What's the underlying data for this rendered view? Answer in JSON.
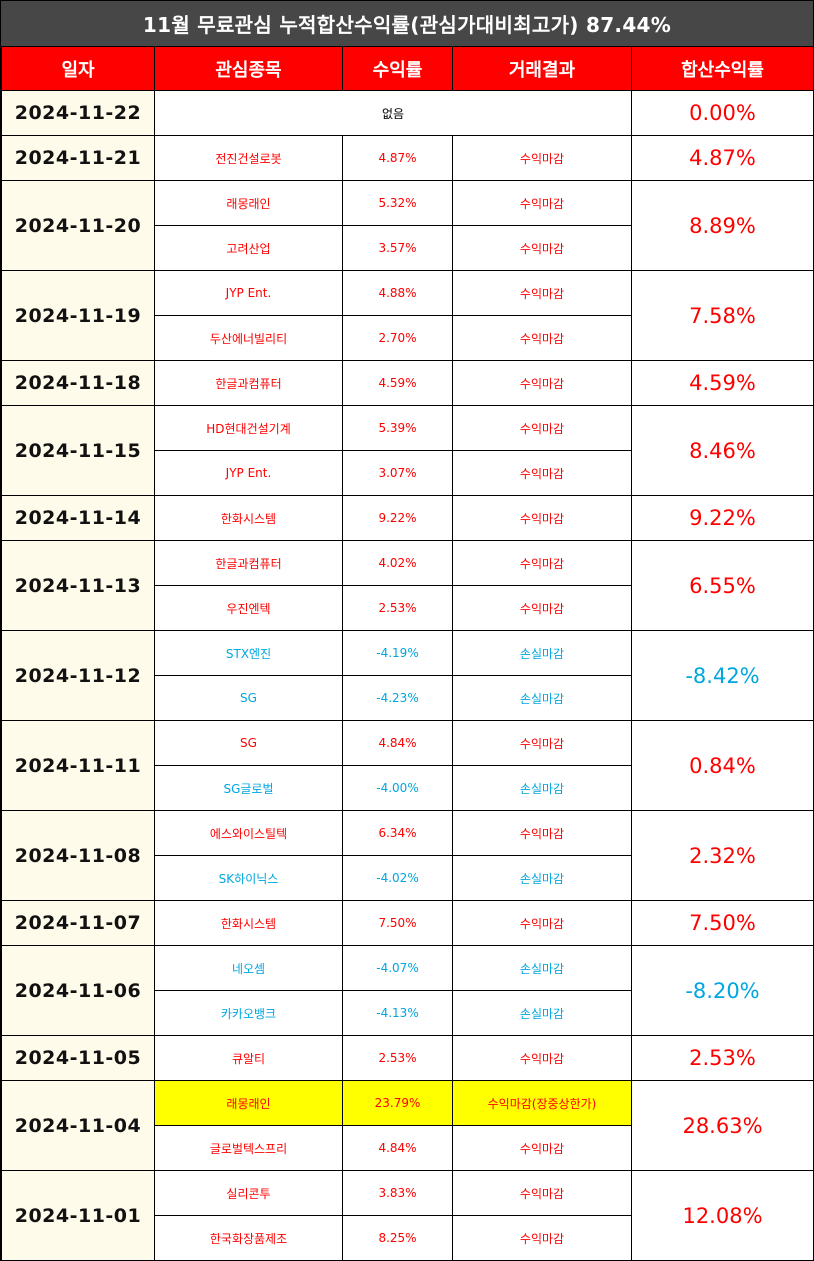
{
  "title": "11월 무료관심 누적합산수익률(관심가대비최고가) 87.44%",
  "colors": {
    "header_bg": "#ff0000",
    "title_bg": "#474747",
    "positive": "#ff0000",
    "negative": "#00a6e0",
    "date_bg": "#fffbea",
    "highlight": "#ffff00"
  },
  "headers": {
    "date": "일자",
    "stock": "관심종목",
    "return": "수익률",
    "result": "거래결과",
    "total": "합산수익률"
  },
  "rows": [
    {
      "date": "2024-11-22",
      "none": "없음",
      "total": "0.00%"
    },
    {
      "date": "2024-11-21",
      "items": [
        {
          "stock": "전진건설로봇",
          "return": "4.87%",
          "result": "수익마감"
        }
      ],
      "total": "4.87%"
    },
    {
      "date": "2024-11-20",
      "items": [
        {
          "stock": "래몽래인",
          "return": "5.32%",
          "result": "수익마감"
        },
        {
          "stock": "고려산업",
          "return": "3.57%",
          "result": "수익마감"
        }
      ],
      "total": "8.89%"
    },
    {
      "date": "2024-11-19",
      "items": [
        {
          "stock": "JYP Ent.",
          "return": "4.88%",
          "result": "수익마감"
        },
        {
          "stock": "두산에너빌리티",
          "return": "2.70%",
          "result": "수익마감"
        }
      ],
      "total": "7.58%"
    },
    {
      "date": "2024-11-18",
      "items": [
        {
          "stock": "한글과컴퓨터",
          "return": "4.59%",
          "result": "수익마감"
        }
      ],
      "total": "4.59%"
    },
    {
      "date": "2024-11-15",
      "items": [
        {
          "stock": "HD현대건설기계",
          "return": "5.39%",
          "result": "수익마감"
        },
        {
          "stock": "JYP Ent.",
          "return": "3.07%",
          "result": "수익마감"
        }
      ],
      "total": "8.46%"
    },
    {
      "date": "2024-11-14",
      "items": [
        {
          "stock": "한화시스템",
          "return": "9.22%",
          "result": "수익마감"
        }
      ],
      "total": "9.22%"
    },
    {
      "date": "2024-11-13",
      "items": [
        {
          "stock": "한글과컴퓨터",
          "return": "4.02%",
          "result": "수익마감"
        },
        {
          "stock": "우진엔텍",
          "return": "2.53%",
          "result": "수익마감"
        }
      ],
      "total": "6.55%"
    },
    {
      "date": "2024-11-12",
      "items": [
        {
          "stock": "STX엔진",
          "return": "-4.19%",
          "result": "손실마감"
        },
        {
          "stock": "SG",
          "return": "-4.23%",
          "result": "손실마감"
        }
      ],
      "total": "-8.42%"
    },
    {
      "date": "2024-11-11",
      "items": [
        {
          "stock": "SG",
          "return": "4.84%",
          "result": "수익마감"
        },
        {
          "stock": "SG글로벌",
          "return": "-4.00%",
          "result": "손실마감"
        }
      ],
      "total": "0.84%"
    },
    {
      "date": "2024-11-08",
      "items": [
        {
          "stock": "에스와이스틸텍",
          "return": "6.34%",
          "result": "수익마감"
        },
        {
          "stock": "SK하이닉스",
          "return": "-4.02%",
          "result": "손실마감"
        }
      ],
      "total": "2.32%"
    },
    {
      "date": "2024-11-07",
      "items": [
        {
          "stock": "한화시스템",
          "return": "7.50%",
          "result": "수익마감"
        }
      ],
      "total": "7.50%"
    },
    {
      "date": "2024-11-06",
      "items": [
        {
          "stock": "네오셈",
          "return": "-4.07%",
          "result": "손실마감"
        },
        {
          "stock": "카카오뱅크",
          "return": "-4.13%",
          "result": "손실마감"
        }
      ],
      "total": "-8.20%"
    },
    {
      "date": "2024-11-05",
      "items": [
        {
          "stock": "큐알티",
          "return": "2.53%",
          "result": "수익마감"
        }
      ],
      "total": "2.53%"
    },
    {
      "date": "2024-11-04",
      "items": [
        {
          "stock": "래몽래인",
          "return": "23.79%",
          "result": "수익마감(장중상한가)",
          "highlight": true
        },
        {
          "stock": "글로벌텍스프리",
          "return": "4.84%",
          "result": "수익마감"
        }
      ],
      "total": "28.63%"
    },
    {
      "date": "2024-11-01",
      "items": [
        {
          "stock": "실리콘투",
          "return": "3.83%",
          "result": "수익마감"
        },
        {
          "stock": "한국화장품제조",
          "return": "8.25%",
          "result": "수익마감"
        }
      ],
      "total": "12.08%"
    }
  ]
}
